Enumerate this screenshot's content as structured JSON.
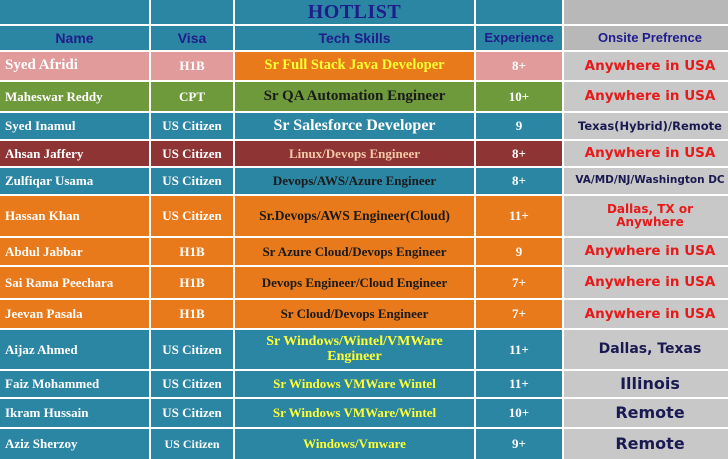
{
  "title": "HOTLIST",
  "headers": {
    "name": "Name",
    "visa": "Visa",
    "skills": "Tech Skills",
    "experience": "Experience",
    "onsite": "Onsite Prefrence"
  },
  "colors": {
    "teal": "#2b86a3",
    "orange": "#e87a1c",
    "pink": "#e19b9b",
    "olive": "#6e9a3c",
    "maroon": "#8e3434",
    "grey": "#c8c8c8",
    "red_text": "#e61a1a",
    "navy_text": "#1a1a52",
    "yellow_text": "#ffff33"
  },
  "rows": [
    {
      "name": "Syed Afridi",
      "visa": "H1B",
      "skills": "Sr Full Stack Java Developer",
      "experience": "8+",
      "onsite": "Anywhere in USA"
    },
    {
      "name": "Maheswar Reddy",
      "visa": "CPT",
      "skills": "Sr QA Automation Engineer",
      "experience": "10+",
      "onsite": "Anywhere in USA"
    },
    {
      "name": "Syed Inamul",
      "visa": "US Citizen",
      "skills": "Sr Salesforce Developer",
      "experience": "9",
      "onsite": "Texas(Hybrid)/Remote"
    },
    {
      "name": "Ahsan Jaffery",
      "visa": "US Citizen",
      "skills": "Linux/Devops Engineer",
      "experience": "8+",
      "onsite": "Anywhere in USA"
    },
    {
      "name": "Zulfiqar Usama",
      "visa": "US Citizen",
      "skills": "Devops/AWS/Azure Engineer",
      "experience": "8+",
      "onsite": "VA/MD/NJ/Washington DC"
    },
    {
      "name": "Hassan Khan",
      "visa": "US Citizen",
      "skills": "Sr.Devops/AWS Engineer(Cloud)",
      "experience": "11+",
      "onsite": "Dallas, TX or Anywhere"
    },
    {
      "name": "Abdul Jabbar",
      "visa": "H1B",
      "skills": "Sr Azure Cloud/Devops Engineer",
      "experience": "9",
      "onsite": "Anywhere in USA"
    },
    {
      "name": "Sai Rama Peechara",
      "visa": "H1B",
      "skills": "Devops Engineer/Cloud Engineer",
      "experience": "7+",
      "onsite": "Anywhere in USA"
    },
    {
      "name": "Jeevan Pasala",
      "visa": "H1B",
      "skills": "Sr Cloud/Devops Engineer",
      "experience": "7+",
      "onsite": "Anywhere in USA"
    },
    {
      "name": "Aijaz Ahmed",
      "visa": "US Citizen",
      "skills": "Sr Windows/Wintel/VMWare Engineer",
      "experience": "11+",
      "onsite": "Dallas, Texas"
    },
    {
      "name": "Faiz Mohammed",
      "visa": "US Citizen",
      "skills": "Sr Windows VMWare Wintel",
      "experience": "11+",
      "onsite": "Illinois"
    },
    {
      "name": "Ikram Hussain",
      "visa": "US Citizen",
      "skills": "Sr Windows VMWare/Wintel",
      "experience": "10+",
      "onsite": "Remote"
    },
    {
      "name": "Aziz Sherzoy",
      "visa": "US Citizen",
      "skills": "Windows/Vmware",
      "experience": "9+",
      "onsite": "Remote"
    }
  ]
}
